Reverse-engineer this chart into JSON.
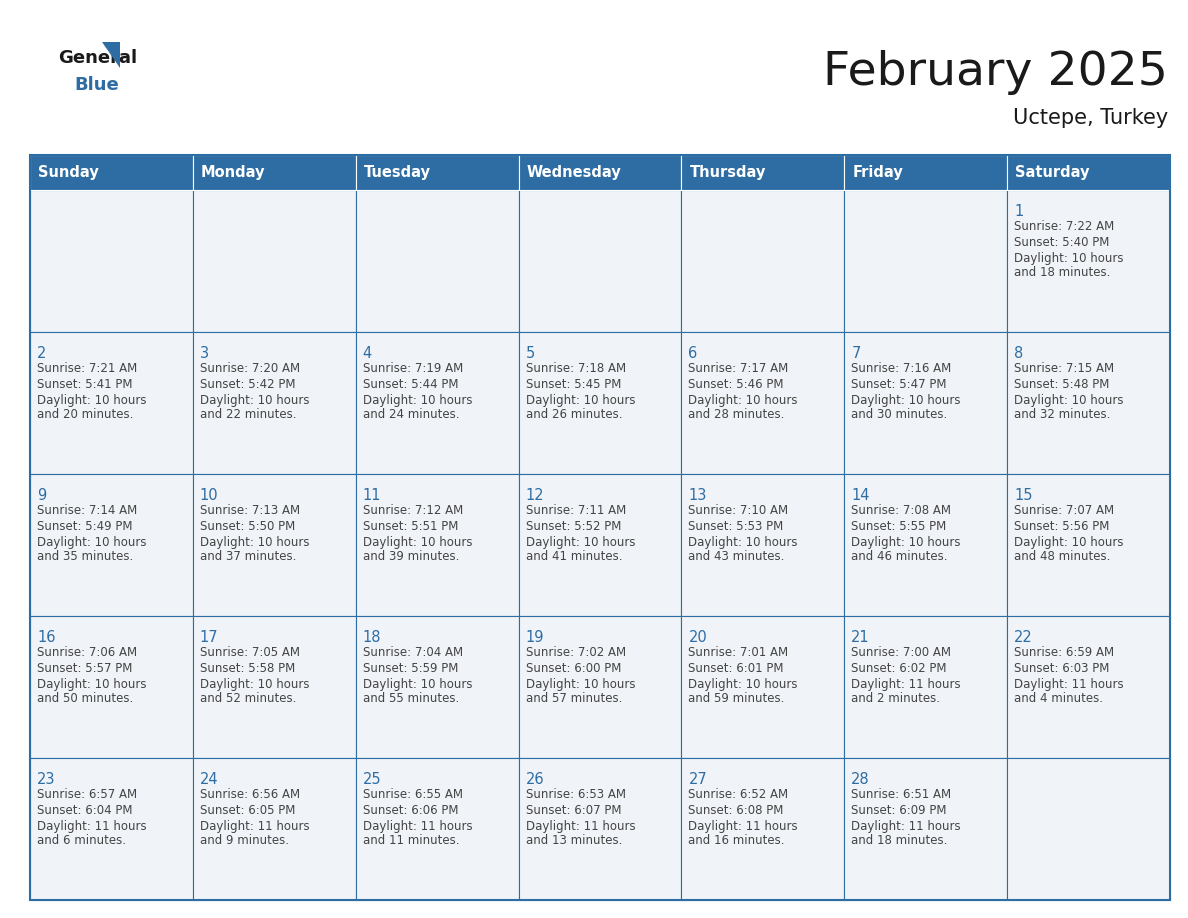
{
  "title": "February 2025",
  "subtitle": "Uctepe, Turkey",
  "days_of_week": [
    "Sunday",
    "Monday",
    "Tuesday",
    "Wednesday",
    "Thursday",
    "Friday",
    "Saturday"
  ],
  "header_bg": "#2e6da4",
  "header_text": "#ffffff",
  "cell_bg": "#f0f4f8",
  "border_color": "#2e6da4",
  "day_num_color": "#2e6da4",
  "text_color": "#444444",
  "calendar_data": [
    [
      null,
      null,
      null,
      null,
      null,
      null,
      {
        "day": 1,
        "sunrise": "7:22 AM",
        "sunset": "5:40 PM",
        "daylight": "10 hours and 18 minutes."
      }
    ],
    [
      {
        "day": 2,
        "sunrise": "7:21 AM",
        "sunset": "5:41 PM",
        "daylight": "10 hours and 20 minutes."
      },
      {
        "day": 3,
        "sunrise": "7:20 AM",
        "sunset": "5:42 PM",
        "daylight": "10 hours and 22 minutes."
      },
      {
        "day": 4,
        "sunrise": "7:19 AM",
        "sunset": "5:44 PM",
        "daylight": "10 hours and 24 minutes."
      },
      {
        "day": 5,
        "sunrise": "7:18 AM",
        "sunset": "5:45 PM",
        "daylight": "10 hours and 26 minutes."
      },
      {
        "day": 6,
        "sunrise": "7:17 AM",
        "sunset": "5:46 PM",
        "daylight": "10 hours and 28 minutes."
      },
      {
        "day": 7,
        "sunrise": "7:16 AM",
        "sunset": "5:47 PM",
        "daylight": "10 hours and 30 minutes."
      },
      {
        "day": 8,
        "sunrise": "7:15 AM",
        "sunset": "5:48 PM",
        "daylight": "10 hours and 32 minutes."
      }
    ],
    [
      {
        "day": 9,
        "sunrise": "7:14 AM",
        "sunset": "5:49 PM",
        "daylight": "10 hours and 35 minutes."
      },
      {
        "day": 10,
        "sunrise": "7:13 AM",
        "sunset": "5:50 PM",
        "daylight": "10 hours and 37 minutes."
      },
      {
        "day": 11,
        "sunrise": "7:12 AM",
        "sunset": "5:51 PM",
        "daylight": "10 hours and 39 minutes."
      },
      {
        "day": 12,
        "sunrise": "7:11 AM",
        "sunset": "5:52 PM",
        "daylight": "10 hours and 41 minutes."
      },
      {
        "day": 13,
        "sunrise": "7:10 AM",
        "sunset": "5:53 PM",
        "daylight": "10 hours and 43 minutes."
      },
      {
        "day": 14,
        "sunrise": "7:08 AM",
        "sunset": "5:55 PM",
        "daylight": "10 hours and 46 minutes."
      },
      {
        "day": 15,
        "sunrise": "7:07 AM",
        "sunset": "5:56 PM",
        "daylight": "10 hours and 48 minutes."
      }
    ],
    [
      {
        "day": 16,
        "sunrise": "7:06 AM",
        "sunset": "5:57 PM",
        "daylight": "10 hours and 50 minutes."
      },
      {
        "day": 17,
        "sunrise": "7:05 AM",
        "sunset": "5:58 PM",
        "daylight": "10 hours and 52 minutes."
      },
      {
        "day": 18,
        "sunrise": "7:04 AM",
        "sunset": "5:59 PM",
        "daylight": "10 hours and 55 minutes."
      },
      {
        "day": 19,
        "sunrise": "7:02 AM",
        "sunset": "6:00 PM",
        "daylight": "10 hours and 57 minutes."
      },
      {
        "day": 20,
        "sunrise": "7:01 AM",
        "sunset": "6:01 PM",
        "daylight": "10 hours and 59 minutes."
      },
      {
        "day": 21,
        "sunrise": "7:00 AM",
        "sunset": "6:02 PM",
        "daylight": "11 hours and 2 minutes."
      },
      {
        "day": 22,
        "sunrise": "6:59 AM",
        "sunset": "6:03 PM",
        "daylight": "11 hours and 4 minutes."
      }
    ],
    [
      {
        "day": 23,
        "sunrise": "6:57 AM",
        "sunset": "6:04 PM",
        "daylight": "11 hours and 6 minutes."
      },
      {
        "day": 24,
        "sunrise": "6:56 AM",
        "sunset": "6:05 PM",
        "daylight": "11 hours and 9 minutes."
      },
      {
        "day": 25,
        "sunrise": "6:55 AM",
        "sunset": "6:06 PM",
        "daylight": "11 hours and 11 minutes."
      },
      {
        "day": 26,
        "sunrise": "6:53 AM",
        "sunset": "6:07 PM",
        "daylight": "11 hours and 13 minutes."
      },
      {
        "day": 27,
        "sunrise": "6:52 AM",
        "sunset": "6:08 PM",
        "daylight": "11 hours and 16 minutes."
      },
      {
        "day": 28,
        "sunrise": "6:51 AM",
        "sunset": "6:09 PM",
        "daylight": "11 hours and 18 minutes."
      },
      null
    ]
  ]
}
